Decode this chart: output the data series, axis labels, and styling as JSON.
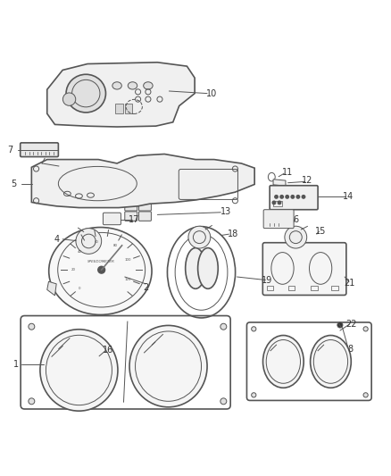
{
  "bg_color": "#ffffff",
  "line_color": "#555555",
  "text_color": "#333333",
  "lw": 1.2,
  "lw_thin": 0.7
}
